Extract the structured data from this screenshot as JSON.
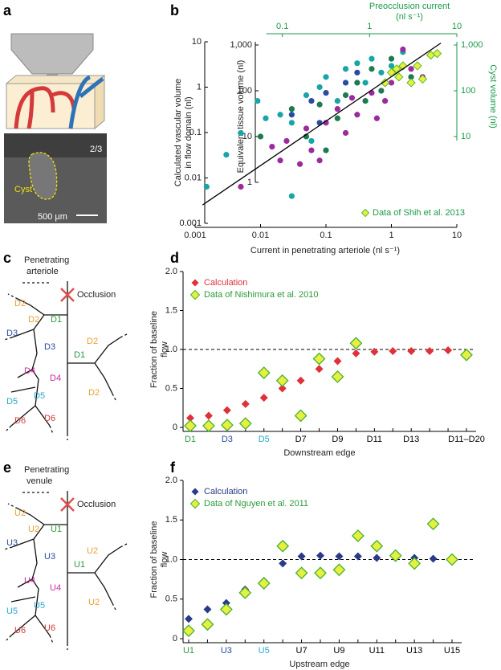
{
  "panel_labels": [
    "a",
    "b",
    "c",
    "d",
    "e",
    "f"
  ],
  "panel_a": {
    "layer": "2/3",
    "cyst": "Cyst",
    "scale_bar": "500 μm"
  },
  "panel_c": {
    "vessel": [
      "Penetrating",
      "arteriole"
    ],
    "occlusion": "Occlusion",
    "edges": [
      "D2",
      "D2",
      "D1",
      "D3",
      "D3",
      "D1",
      "D2",
      "D2",
      "D4",
      "D4",
      "D5",
      "D5",
      "D6",
      "D6"
    ]
  },
  "panel_e": {
    "vessel": [
      "Penetrating",
      "venule"
    ],
    "occlusion": "Occlusion",
    "edges": [
      "U2",
      "U2",
      "U1",
      "U3",
      "U3",
      "U1",
      "U2",
      "U2",
      "U4",
      "U4",
      "U5",
      "U5",
      "U6",
      "U6"
    ]
  },
  "chart_data": [
    {
      "type": "scatter",
      "xscale": "log",
      "yscale": "log",
      "x_label": "Current in penetrating arteriole (nl s⁻¹)",
      "y_label": [
        "Calculated vascular volume",
        "in flow domain (nl)"
      ],
      "y2_label": "Equivalent tissue volume (nl)",
      "x2_label": [
        "Preocclusion current",
        "(nl s⁻¹)"
      ],
      "y3_label": "Cyst volume (nl)",
      "xlim": [
        0.001,
        10
      ],
      "xticks": [
        0.001,
        0.01,
        0.1,
        1,
        10
      ],
      "ylim": [
        0.001,
        10
      ],
      "yticks": [
        0.001,
        0.01,
        0.1,
        1,
        10
      ],
      "y2lim": [
        0.127,
        1175
      ],
      "y2ticks": [
        1,
        10,
        100,
        {
          "value": 1000,
          "label": "1,000"
        }
      ],
      "x2lim": [
        0.01,
        10
      ],
      "x2ticks": [
        0.1,
        1,
        10
      ],
      "y3ticks": [
        10,
        100,
        {
          "value": 1000,
          "label": "1,000"
        }
      ],
      "axis_color": "#1a9a4a",
      "series": [
        {
          "color": "#17a5a5",
          "axis": "y2",
          "x": [
            0.0015,
            0.003,
            0.005,
            0.009,
            0.012,
            0.02,
            0.03,
            0.03,
            0.05,
            0.08,
            0.1,
            0.2,
            0.3,
            0.5,
            0.15,
            0.7,
            1.5,
            0.4,
            0.06,
            1
          ],
          "values": [
            0.8,
            4,
            12,
            60,
            25,
            30,
            20,
            0.5,
            80,
            120,
            200,
            300,
            400,
            500,
            60,
            250,
            700,
            150,
            8,
            350
          ]
        },
        {
          "color": "#9b2a9e",
          "axis": "y2",
          "x": [
            0.005,
            0.015,
            0.02,
            0.025,
            0.04,
            0.05,
            0.06,
            0.08,
            0.1,
            0.15,
            0.2,
            0.3,
            0.5,
            0.8,
            1,
            2,
            1.5,
            0.25,
            0.6,
            3
          ],
          "values": [
            0.8,
            6,
            3,
            8,
            2.5,
            15,
            5,
            3,
            20,
            40,
            12,
            30,
            90,
            60,
            150,
            300,
            800,
            70,
            25,
            200
          ]
        },
        {
          "color": "#1e7a4f",
          "axis": "y2",
          "x": [
            0.01,
            0.03,
            0.05,
            0.08,
            0.1,
            0.2,
            0.3,
            0.5,
            0.7,
            1,
            2,
            0.15,
            0.4
          ],
          "values": [
            10,
            40,
            10,
            50,
            5,
            80,
            150,
            300,
            100,
            500,
            200,
            25,
            60
          ]
        },
        {
          "color": "#2b4aa0",
          "axis": "y2",
          "x": [
            0.03,
            0.06,
            0.1,
            0.2,
            0.08,
            0.3
          ],
          "values": [
            30,
            60,
            90,
            150,
            20,
            250
          ]
        },
        {
          "name": "Data of Shih et al. 2013",
          "color": "#e5f040",
          "edge_color": "#5cb82e",
          "text_color": "#1a9a4a",
          "marker": "diamond",
          "axis": "y2",
          "x": [
            0.8,
            1.2,
            1.5,
            2.5,
            3,
            4,
            5,
            1.3,
            2,
            1.0
          ],
          "values": [
            150,
            300,
            350,
            350,
            180,
            600,
            650,
            200,
            150,
            250
          ]
        }
      ],
      "fit": {
        "x": [
          0.0013,
          5.7
        ],
        "values": [
          0.32,
          1100
        ]
      },
      "legend": "lower right"
    },
    {
      "type": "dot",
      "x_label": "Downstream edge",
      "y_label": [
        "Fraction of baseline",
        "flow"
      ],
      "categories": [
        "D1",
        null,
        "D3",
        null,
        "D5",
        null,
        "D7",
        null,
        "D9",
        null,
        "D11",
        null,
        "D13",
        null,
        null,
        "D11–D20"
      ],
      "category_colors": [
        "#2a9a3a",
        "#000",
        "#2a4aa0",
        "#000",
        "#22aacc",
        "#000",
        "#000",
        "#000",
        "#000",
        "#000",
        "#000",
        "#000",
        "#000",
        "#000",
        "#000",
        "#000"
      ],
      "ylim": [
        0,
        2
      ],
      "yticks": [
        0,
        0.5,
        {
          "value": 1,
          "label": "1.0"
        },
        1.5,
        {
          "value": 2,
          "label": "2.0"
        }
      ],
      "reference_line": 1,
      "series": [
        {
          "name": "Calculation",
          "color": "#e0303a",
          "text_color": "#e0303a",
          "values": [
            0.12,
            0.15,
            0.22,
            0.3,
            0.38,
            0.5,
            0.6,
            0.75,
            0.85,
            0.95,
            0.97,
            0.98,
            0.98,
            0.98,
            0.99,
            null
          ]
        },
        {
          "name": "Data of Nishimura et al. 2010",
          "color": "#e5f040",
          "edge_color": "#4caf30",
          "text_color": "#2a9a3a",
          "values": [
            0.02,
            0.02,
            0.03,
            0.05,
            0.7,
            0.6,
            0.15,
            0.88,
            0.65,
            1.08,
            null,
            null,
            null,
            null,
            null,
            0.93
          ]
        }
      ],
      "legend": "upper left"
    },
    {
      "type": "dot",
      "x_label": "Upstream edge",
      "y_label": [
        "Fraction of baseline",
        "flow"
      ],
      "categories": [
        "U1",
        null,
        "U3",
        null,
        "U5",
        null,
        "U7",
        null,
        "U9",
        null,
        "U11",
        null,
        "U13",
        null,
        "U15"
      ],
      "category_colors": [
        "#2a9a3a",
        "#000",
        "#2a4aa0",
        "#000",
        "#22aacc",
        "#000",
        "#000",
        "#000",
        "#000",
        "#000",
        "#000",
        "#000",
        "#000",
        "#000",
        "#000"
      ],
      "ylim": [
        0,
        2
      ],
      "yticks": [
        0,
        0.5,
        {
          "value": 1,
          "label": "1.0"
        },
        1.5,
        {
          "value": 2,
          "label": "2.0"
        }
      ],
      "reference_line": 1,
      "series": [
        {
          "name": "Calculation",
          "color": "#2a3a8a",
          "text_color": "#2a3a8a",
          "values": [
            0.25,
            0.37,
            0.45,
            0.62,
            0.73,
            0.95,
            1.04,
            1.05,
            1.04,
            1.04,
            1.02,
            1.02,
            1.02,
            1.01,
            1.0
          ]
        },
        {
          "name": "Data of Nguyen et al. 2011",
          "color": "#e5f040",
          "edge_color": "#4caf30",
          "text_color": "#2a9a3a",
          "values": [
            0.1,
            0.18,
            0.37,
            0.58,
            0.7,
            1.17,
            0.83,
            0.83,
            0.87,
            1.3,
            1.17,
            1.05,
            0.95,
            1.45,
            1.0
          ]
        }
      ],
      "legend": "upper left"
    }
  ]
}
